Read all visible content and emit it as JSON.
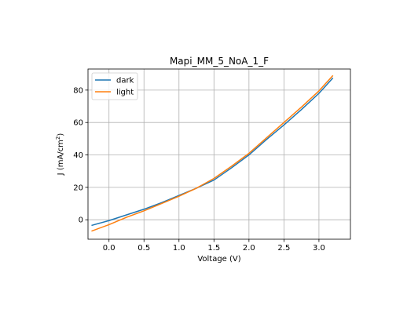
{
  "chart_data": {
    "type": "line",
    "title": "Mapi_MM_5_NoA_1_F",
    "xlabel": "Voltage (V)",
    "ylabel_main": "J (mA/cm",
    "ylabel_sup": "2",
    "ylabel_tail": ")",
    "xlim": [
      -0.3,
      3.45
    ],
    "ylim": [
      -12,
      93
    ],
    "xticks": [
      0.0,
      0.5,
      1.0,
      1.5,
      2.0,
      2.5,
      3.0
    ],
    "xtick_labels": [
      "0.0",
      "0.5",
      "1.0",
      "1.5",
      "2.0",
      "2.5",
      "3.0"
    ],
    "yticks": [
      0,
      20,
      40,
      60,
      80
    ],
    "ytick_labels": [
      "0",
      "20",
      "40",
      "60",
      "80"
    ],
    "grid": true,
    "legend_position": "top-left",
    "series": [
      {
        "name": "dark",
        "color": "#1f77b4",
        "x": [
          -0.25,
          0.0,
          0.25,
          0.5,
          0.75,
          1.0,
          1.25,
          1.5,
          1.75,
          2.0,
          2.25,
          2.5,
          2.75,
          3.0,
          3.2
        ],
        "y": [
          -3.5,
          -0.5,
          3,
          6.5,
          10.5,
          15,
          19.5,
          24.5,
          32,
          40,
          49.5,
          58.5,
          68,
          78,
          87.5
        ]
      },
      {
        "name": "light",
        "color": "#ff7f0e",
        "x": [
          -0.25,
          0.0,
          0.25,
          0.5,
          0.75,
          1.0,
          1.25,
          1.5,
          1.75,
          2.0,
          2.25,
          2.5,
          2.75,
          3.0,
          3.2
        ],
        "y": [
          -7,
          -3,
          1.5,
          5.5,
          10,
          14.5,
          19.5,
          25.5,
          33,
          41,
          50.5,
          60,
          69.5,
          79.5,
          89
        ]
      }
    ]
  }
}
